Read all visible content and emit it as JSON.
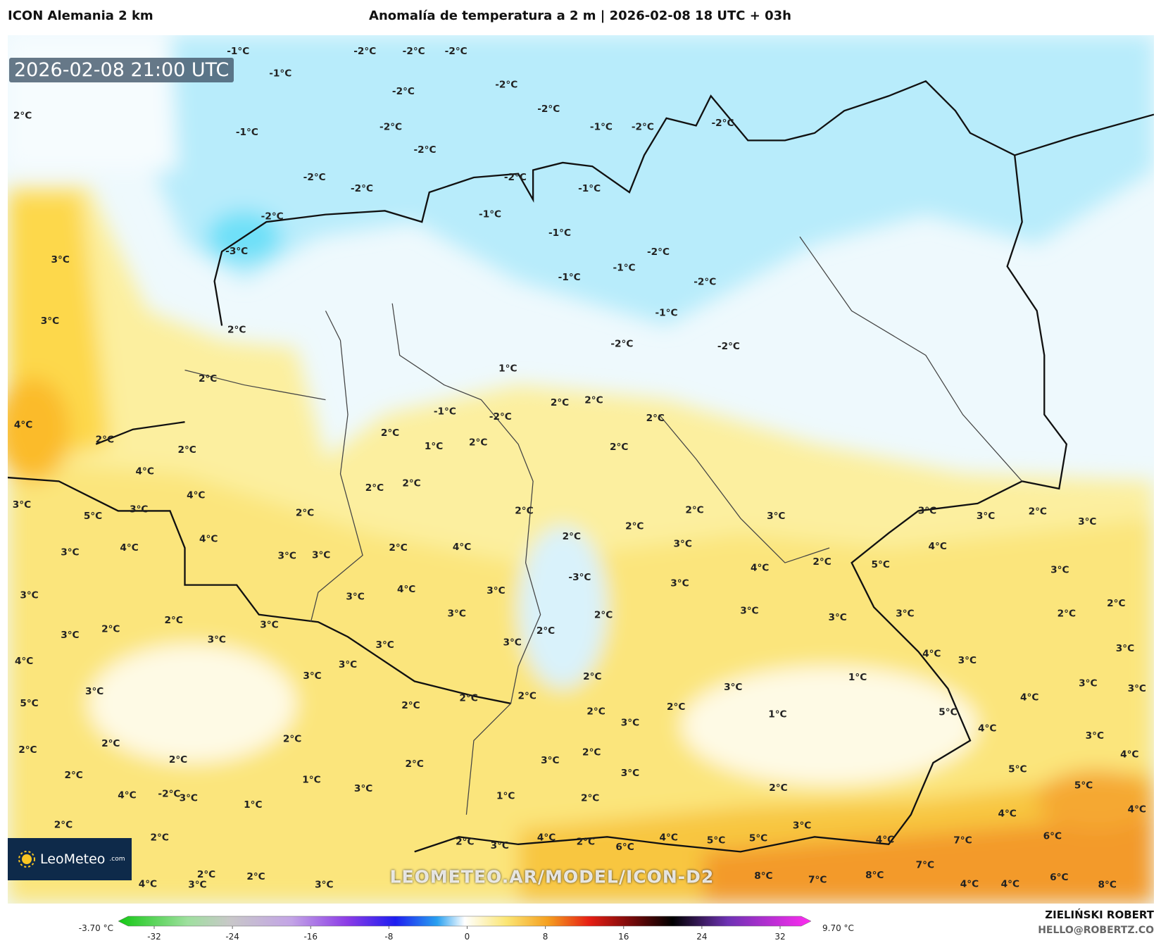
{
  "header": {
    "model": "ICON Alemania 2 km",
    "title": "Anomalía de temperatura a 2 m | 2026-02-08 18 UTC + 03h"
  },
  "timestamp": "2026-02-08 21:00 UTC",
  "logo": {
    "name": "LeoMeteo",
    "suffix": ".com"
  },
  "watermark": "LEOMETEO.AR/MODEL/ICON-D2",
  "colorbar": {
    "min_label": "-3.70 °C",
    "max_label": "9.70 °C",
    "ticks": [
      -32,
      -24,
      -16,
      -8,
      0,
      8,
      16,
      24,
      32
    ]
  },
  "author": {
    "name": "ZIELIŃSKI ROBERT",
    "email": "HELLO@ROBERTZ.CO"
  },
  "map_labels": [
    "-1°C",
    "-2°C",
    "-2°C",
    "-2°C",
    "-1°C",
    "-2°C",
    "-2°C",
    "-2°C",
    "2°C",
    "-1°C",
    "-2°C",
    "-1°C",
    "-2°C",
    "-2°C",
    "-2°C",
    "-2°C",
    "-2°C",
    "-2°C",
    "-1°C",
    "-2°C",
    "-1°C",
    "-3°C",
    "3°C",
    "-1°C",
    "-2°C",
    "-1°C",
    "-1°C",
    "-2°C",
    "-1°C",
    "3°C",
    "2°C",
    "-2°C",
    "-2°C",
    "2°C",
    "1°C",
    "-1°C",
    "-2°C",
    "2°C",
    "2°C",
    "2°C",
    "4°C",
    "2°C",
    "1°C",
    "2°C",
    "2°C",
    "2°C",
    "2°C",
    "4°C",
    "2°C",
    "2°C",
    "4°C",
    "5°C",
    "3°C",
    "3°C",
    "2°C",
    "2°C",
    "2°C",
    "3°C",
    "3°C",
    "3°C",
    "2°C",
    "3°C",
    "3°C",
    "4°C",
    "3°C",
    "3°C",
    "4°C",
    "2°C",
    "4°C",
    "2°C",
    "2°C",
    "3°C",
    "4°C",
    "2°C",
    "5°C",
    "4°C",
    "3°C",
    "-3°C",
    "4°C",
    "3°C",
    "3°C",
    "3°C",
    "3°C",
    "3°C",
    "2°C",
    "3°C",
    "3°C",
    "3°C",
    "2°C",
    "2°C",
    "2°C",
    "2°C",
    "3°C",
    "3°C",
    "3°C",
    "2°C",
    "3°C",
    "3°C",
    "4°C",
    "3°C",
    "3°C",
    "2°C",
    "1°C",
    "4°C",
    "3°C",
    "3°C",
    "3°C",
    "5°C",
    "3°C",
    "2°C",
    "2°C",
    "2°C",
    "3°C",
    "4°C",
    "3°C",
    "2°C",
    "2°C",
    "3°C",
    "1°C",
    "5°C",
    "4°C",
    "3°C",
    "4°C",
    "2°C",
    "2°C",
    "2°C",
    "3°C",
    "2°C",
    "2°C",
    "2°C",
    "5°C",
    "5°C",
    "2°C",
    "1°C",
    "3°C",
    "3°C",
    "2°C",
    "4°C",
    "-2°C",
    "3°C",
    "1°C",
    "1°C",
    "2°C",
    "4°C",
    "4°C",
    "2°C",
    "3°C",
    "2°C",
    "2°C",
    "3°C",
    "4°C",
    "2°C",
    "6°C",
    "4°C",
    "5°C",
    "5°C",
    "4°C",
    "7°C",
    "6°C",
    "7°C",
    "2°C",
    "2°C",
    "8°C",
    "7°C",
    "8°C",
    "6°C",
    "4°C",
    "4°C",
    "8°C",
    "4°C",
    "3°C",
    "3°C"
  ]
}
